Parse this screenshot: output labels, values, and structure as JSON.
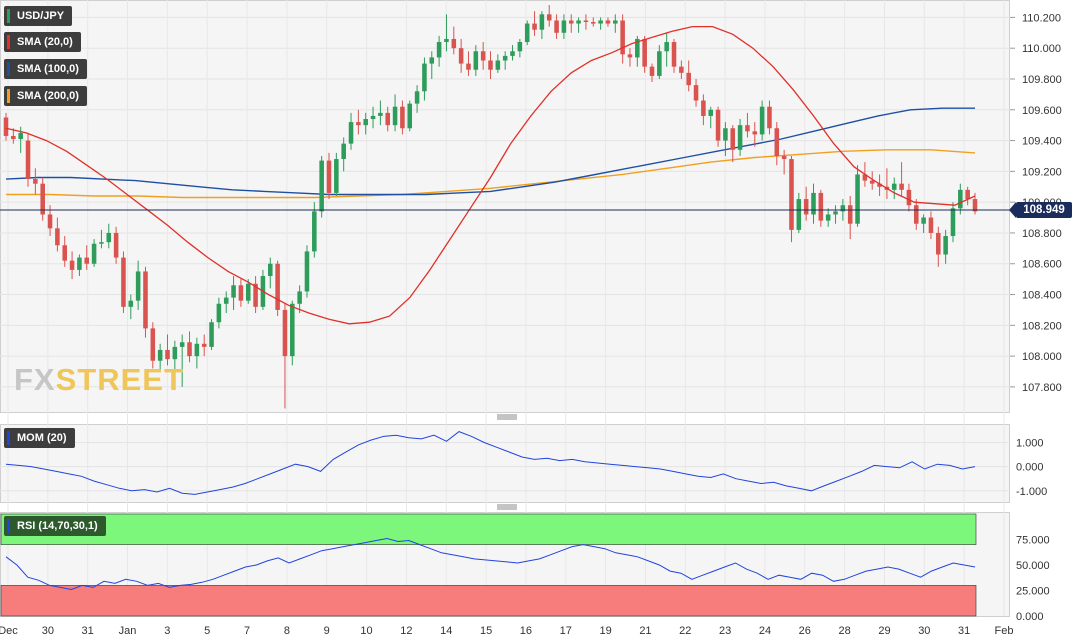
{
  "symbol": "USD/JPY",
  "legend": [
    {
      "label": "SMA (20,0)",
      "color": "#d94040"
    },
    {
      "label": "SMA (100,0)",
      "color": "#1f4fa3"
    },
    {
      "label": "SMA (200,0)",
      "color": "#f0a020"
    }
  ],
  "current_price": "108.949",
  "watermark": {
    "fx": "FX",
    "street": "STREET"
  },
  "mom_label": "MOM (20)",
  "rsi_label": "RSI (14,70,30,1)",
  "colors": {
    "up": "#2e9c5a",
    "down": "#d9534f",
    "sma20": "#e0302a",
    "sma100": "#1f4fa3",
    "sma200": "#f0a020",
    "mom": "#2244dd",
    "rsi": "#2244dd",
    "rsi_over": "#7cf77c",
    "rsi_under": "#f77c7c"
  },
  "chart_data": {
    "type": "candlestick",
    "ylim": [
      107.65,
      110.3
    ],
    "yticks": [
      "110.200",
      "110.000",
      "109.800",
      "109.600",
      "109.400",
      "109.200",
      "109.000",
      "108.800",
      "108.600",
      "108.400",
      "108.200",
      "108.000",
      "107.800"
    ],
    "xticks": [
      "Dec",
      "30",
      "31",
      "Jan",
      "3",
      "5",
      "7",
      "8",
      "9",
      "10",
      "12",
      "14",
      "15",
      "16",
      "17",
      "19",
      "21",
      "22",
      "23",
      "24",
      "26",
      "28",
      "29",
      "30",
      "31",
      "Feb"
    ],
    "candles": [
      [
        109.55,
        109.58,
        109.4,
        109.43
      ],
      [
        109.43,
        109.48,
        109.38,
        109.41
      ],
      [
        109.41,
        109.49,
        109.32,
        109.45
      ],
      [
        109.4,
        109.45,
        109.1,
        109.15
      ],
      [
        109.15,
        109.22,
        109.05,
        109.12
      ],
      [
        109.12,
        109.16,
        108.88,
        108.92
      ],
      [
        108.92,
        108.98,
        108.78,
        108.83
      ],
      [
        108.83,
        108.9,
        108.68,
        108.72
      ],
      [
        108.72,
        108.78,
        108.58,
        108.62
      ],
      [
        108.62,
        108.68,
        108.5,
        108.56
      ],
      [
        108.56,
        108.66,
        108.52,
        108.64
      ],
      [
        108.64,
        108.72,
        108.56,
        108.6
      ],
      [
        108.6,
        108.76,
        108.58,
        108.73
      ],
      [
        108.73,
        108.82,
        108.7,
        108.74
      ],
      [
        108.74,
        108.86,
        108.7,
        108.8
      ],
      [
        108.8,
        108.84,
        108.6,
        108.64
      ],
      [
        108.64,
        108.68,
        108.28,
        108.32
      ],
      [
        108.32,
        108.4,
        108.24,
        108.36
      ],
      [
        108.36,
        108.62,
        108.3,
        108.55
      ],
      [
        108.55,
        108.58,
        108.12,
        108.18
      ],
      [
        108.18,
        108.22,
        107.92,
        107.97
      ],
      [
        107.97,
        108.08,
        107.9,
        108.04
      ],
      [
        108.04,
        108.14,
        107.94,
        107.98
      ],
      [
        107.98,
        108.1,
        107.88,
        108.06
      ],
      [
        108.06,
        108.14,
        107.8,
        108.09
      ],
      [
        108.09,
        108.16,
        107.96,
        108.0
      ],
      [
        108.0,
        108.12,
        107.92,
        108.08
      ],
      [
        108.08,
        108.14,
        108.0,
        108.06
      ],
      [
        108.06,
        108.24,
        108.04,
        108.22
      ],
      [
        108.22,
        108.38,
        108.18,
        108.34
      ],
      [
        108.34,
        108.42,
        108.28,
        108.38
      ],
      [
        108.38,
        108.52,
        108.3,
        108.46
      ],
      [
        108.46,
        108.5,
        108.32,
        108.36
      ],
      [
        108.36,
        108.5,
        108.34,
        108.47
      ],
      [
        108.47,
        108.52,
        108.28,
        108.32
      ],
      [
        108.32,
        108.56,
        108.3,
        108.52
      ],
      [
        108.52,
        108.64,
        108.44,
        108.6
      ],
      [
        108.6,
        108.62,
        108.26,
        108.3
      ],
      [
        108.3,
        108.34,
        107.66,
        108.0
      ],
      [
        108.0,
        108.36,
        107.94,
        108.34
      ],
      [
        108.34,
        108.46,
        108.28,
        108.42
      ],
      [
        108.42,
        108.72,
        108.38,
        108.68
      ],
      [
        108.68,
        109.0,
        108.64,
        108.94
      ],
      [
        108.94,
        109.3,
        108.9,
        109.27
      ],
      [
        109.27,
        109.32,
        109.02,
        109.06
      ],
      [
        109.06,
        109.32,
        109.04,
        109.28
      ],
      [
        109.28,
        109.42,
        109.2,
        109.38
      ],
      [
        109.38,
        109.58,
        109.34,
        109.52
      ],
      [
        109.52,
        109.6,
        109.44,
        109.5
      ],
      [
        109.5,
        109.58,
        109.44,
        109.54
      ],
      [
        109.54,
        109.62,
        109.48,
        109.56
      ],
      [
        109.56,
        109.66,
        109.5,
        109.58
      ],
      [
        109.58,
        109.62,
        109.46,
        109.5
      ],
      [
        109.5,
        109.7,
        109.46,
        109.62
      ],
      [
        109.62,
        109.66,
        109.44,
        109.48
      ],
      [
        109.48,
        109.66,
        109.46,
        109.64
      ],
      [
        109.64,
        109.76,
        109.58,
        109.72
      ],
      [
        109.72,
        109.94,
        109.66,
        109.9
      ],
      [
        109.9,
        109.98,
        109.8,
        109.94
      ],
      [
        109.94,
        110.08,
        109.88,
        110.04
      ],
      [
        110.04,
        110.22,
        109.98,
        110.06
      ],
      [
        110.06,
        110.14,
        109.96,
        110.0
      ],
      [
        110.0,
        110.06,
        109.84,
        109.9
      ],
      [
        109.9,
        109.98,
        109.82,
        109.86
      ],
      [
        109.86,
        110.02,
        109.82,
        109.98
      ],
      [
        109.98,
        110.04,
        109.86,
        109.92
      ],
      [
        109.92,
        109.98,
        109.8,
        109.86
      ],
      [
        109.86,
        109.96,
        109.84,
        109.92
      ],
      [
        109.92,
        109.98,
        109.86,
        109.95
      ],
      [
        109.95,
        110.02,
        109.92,
        109.98
      ],
      [
        109.98,
        110.06,
        109.94,
        110.04
      ],
      [
        110.04,
        110.18,
        110.02,
        110.16
      ],
      [
        110.16,
        110.24,
        110.08,
        110.12
      ],
      [
        110.12,
        110.24,
        110.06,
        110.22
      ],
      [
        110.22,
        110.28,
        110.14,
        110.18
      ],
      [
        110.18,
        110.22,
        110.06,
        110.1
      ],
      [
        110.1,
        110.22,
        110.06,
        110.18
      ],
      [
        110.18,
        110.22,
        110.1,
        110.16
      ],
      [
        110.16,
        110.2,
        110.1,
        110.18
      ],
      [
        110.18,
        110.22,
        110.12,
        110.17
      ],
      [
        110.17,
        110.2,
        110.14,
        110.16
      ],
      [
        110.16,
        110.2,
        110.12,
        110.18
      ],
      [
        110.18,
        110.2,
        110.14,
        110.16
      ],
      [
        110.16,
        110.22,
        110.1,
        110.18
      ],
      [
        110.18,
        110.22,
        109.9,
        109.96
      ],
      [
        109.96,
        110.0,
        109.88,
        109.94
      ],
      [
        109.94,
        110.08,
        109.88,
        110.06
      ],
      [
        110.06,
        110.08,
        109.84,
        109.88
      ],
      [
        109.88,
        109.9,
        109.78,
        109.82
      ],
      [
        109.82,
        110.02,
        109.8,
        109.98
      ],
      [
        109.98,
        110.1,
        109.88,
        110.04
      ],
      [
        110.04,
        110.06,
        109.84,
        109.88
      ],
      [
        109.88,
        109.92,
        109.8,
        109.84
      ],
      [
        109.84,
        109.92,
        109.72,
        109.76
      ],
      [
        109.76,
        109.8,
        109.62,
        109.66
      ],
      [
        109.66,
        109.7,
        109.5,
        109.56
      ],
      [
        109.56,
        109.62,
        109.48,
        109.6
      ],
      [
        109.6,
        109.62,
        109.36,
        109.4
      ],
      [
        109.4,
        109.52,
        109.3,
        109.48
      ],
      [
        109.48,
        109.5,
        109.26,
        109.34
      ],
      [
        109.34,
        109.54,
        109.3,
        109.5
      ],
      [
        109.5,
        109.58,
        109.42,
        109.46
      ],
      [
        109.46,
        109.52,
        109.36,
        109.44
      ],
      [
        109.44,
        109.66,
        109.4,
        109.62
      ],
      [
        109.62,
        109.66,
        109.44,
        109.48
      ],
      [
        109.48,
        109.52,
        109.24,
        109.3
      ],
      [
        109.3,
        109.34,
        109.18,
        109.28
      ],
      [
        109.28,
        109.3,
        108.74,
        108.82
      ],
      [
        108.82,
        109.06,
        108.8,
        109.02
      ],
      [
        109.02,
        109.1,
        108.88,
        108.92
      ],
      [
        108.92,
        109.12,
        108.86,
        109.06
      ],
      [
        109.06,
        109.08,
        108.84,
        108.88
      ],
      [
        108.88,
        108.96,
        108.84,
        108.92
      ],
      [
        108.92,
        108.98,
        108.86,
        108.94
      ],
      [
        108.94,
        109.02,
        108.88,
        108.98
      ],
      [
        108.98,
        109.04,
        108.76,
        108.86
      ],
      [
        108.86,
        109.24,
        108.84,
        109.18
      ],
      [
        109.18,
        109.26,
        109.1,
        109.14
      ],
      [
        109.14,
        109.2,
        109.08,
        109.12
      ],
      [
        109.12,
        109.18,
        109.04,
        109.1
      ],
      [
        109.1,
        109.22,
        109.02,
        109.08
      ],
      [
        109.08,
        109.16,
        109.02,
        109.12
      ],
      [
        109.12,
        109.26,
        109.04,
        109.08
      ],
      [
        109.08,
        109.12,
        108.94,
        108.98
      ],
      [
        108.98,
        109.02,
        108.82,
        108.86
      ],
      [
        108.86,
        108.92,
        108.8,
        108.9
      ],
      [
        108.9,
        108.94,
        108.76,
        108.8
      ],
      [
        108.8,
        108.84,
        108.58,
        108.66
      ],
      [
        108.66,
        108.82,
        108.6,
        108.78
      ],
      [
        108.78,
        109.0,
        108.74,
        108.96
      ],
      [
        108.96,
        109.12,
        108.92,
        109.08
      ],
      [
        109.08,
        109.1,
        108.98,
        109.02
      ],
      [
        109.02,
        109.06,
        108.92,
        108.94
      ]
    ],
    "sma20": [
      109.48,
      109.45,
      109.4,
      109.33,
      109.24,
      109.15,
      109.05,
      108.95,
      108.85,
      108.74,
      108.64,
      108.55,
      108.48,
      108.4,
      108.33,
      108.28,
      108.24,
      108.21,
      108.22,
      108.26,
      108.38,
      108.56,
      108.76,
      108.96,
      109.16,
      109.38,
      109.56,
      109.72,
      109.84,
      109.92,
      109.97,
      110.03,
      110.07,
      110.11,
      110.14,
      110.14,
      110.09,
      110.0,
      109.88,
      109.73,
      109.56,
      109.38,
      109.23,
      109.14,
      109.06,
      109.0,
      108.99,
      108.98,
      109.04
    ],
    "sma100": [
      109.15,
      109.16,
      109.16,
      109.15,
      109.14,
      109.12,
      109.1,
      109.08,
      109.07,
      109.06,
      109.05,
      109.05,
      109.05,
      109.05,
      109.06,
      109.07,
      109.1,
      109.13,
      109.17,
      109.21,
      109.25,
      109.29,
      109.33,
      109.37,
      109.41,
      109.46,
      109.51,
      109.56,
      109.6,
      109.61,
      109.61
    ],
    "sma200": [
      109.05,
      109.05,
      109.04,
      109.04,
      109.03,
      109.03,
      109.03,
      109.03,
      109.04,
      109.05,
      109.07,
      109.09,
      109.12,
      109.15,
      109.18,
      109.22,
      109.26,
      109.29,
      109.31,
      109.33,
      109.34,
      109.34,
      109.32
    ],
    "mom": {
      "ylim": [
        -1.3,
        1.6
      ],
      "yticks": [
        "1.000",
        "0.000",
        "-1.000"
      ],
      "values": [
        0.1,
        0.05,
        0.0,
        -0.1,
        -0.2,
        -0.3,
        -0.4,
        -0.6,
        -0.75,
        -0.9,
        -1.0,
        -0.95,
        -1.05,
        -0.9,
        -1.1,
        -1.15,
        -1.05,
        -0.95,
        -0.85,
        -0.7,
        -0.5,
        -0.3,
        -0.1,
        0.1,
        0.0,
        -0.2,
        0.3,
        0.6,
        0.9,
        1.1,
        1.25,
        1.3,
        1.2,
        1.15,
        1.3,
        1.05,
        1.45,
        1.25,
        1.0,
        0.8,
        0.6,
        0.4,
        0.3,
        0.35,
        0.25,
        0.3,
        0.2,
        0.15,
        0.1,
        0.05,
        0.0,
        -0.05,
        -0.1,
        -0.2,
        -0.3,
        -0.4,
        -0.45,
        -0.3,
        -0.5,
        -0.6,
        -0.7,
        -0.65,
        -0.8,
        -0.9,
        -1.0,
        -0.8,
        -0.6,
        -0.4,
        -0.2,
        0.05,
        0.0,
        -0.05,
        0.2,
        -0.1,
        0.1,
        0.05,
        -0.1,
        0.0
      ]
    },
    "rsi": {
      "ylim": [
        0,
        100
      ],
      "levels": [
        70,
        30
      ],
      "yticks": [
        "75.000",
        "50.000",
        "25.000",
        "0.000"
      ],
      "values": [
        58,
        50,
        38,
        35,
        30,
        28,
        26,
        30,
        28,
        34,
        32,
        36,
        34,
        30,
        32,
        28,
        30,
        31,
        33,
        36,
        40,
        44,
        48,
        50,
        54,
        57,
        52,
        56,
        60,
        64,
        66,
        68,
        70,
        72,
        74,
        76,
        73,
        74,
        70,
        66,
        62,
        60,
        58,
        56,
        55,
        54,
        53,
        52,
        54,
        56,
        60,
        64,
        68,
        70,
        68,
        66,
        62,
        60,
        58,
        54,
        50,
        44,
        42,
        36,
        40,
        44,
        48,
        52,
        46,
        42,
        36,
        40,
        38,
        36,
        42,
        40,
        34,
        36,
        40,
        44,
        46,
        48,
        46,
        42,
        38,
        44,
        48,
        52,
        50,
        48
      ]
    }
  }
}
